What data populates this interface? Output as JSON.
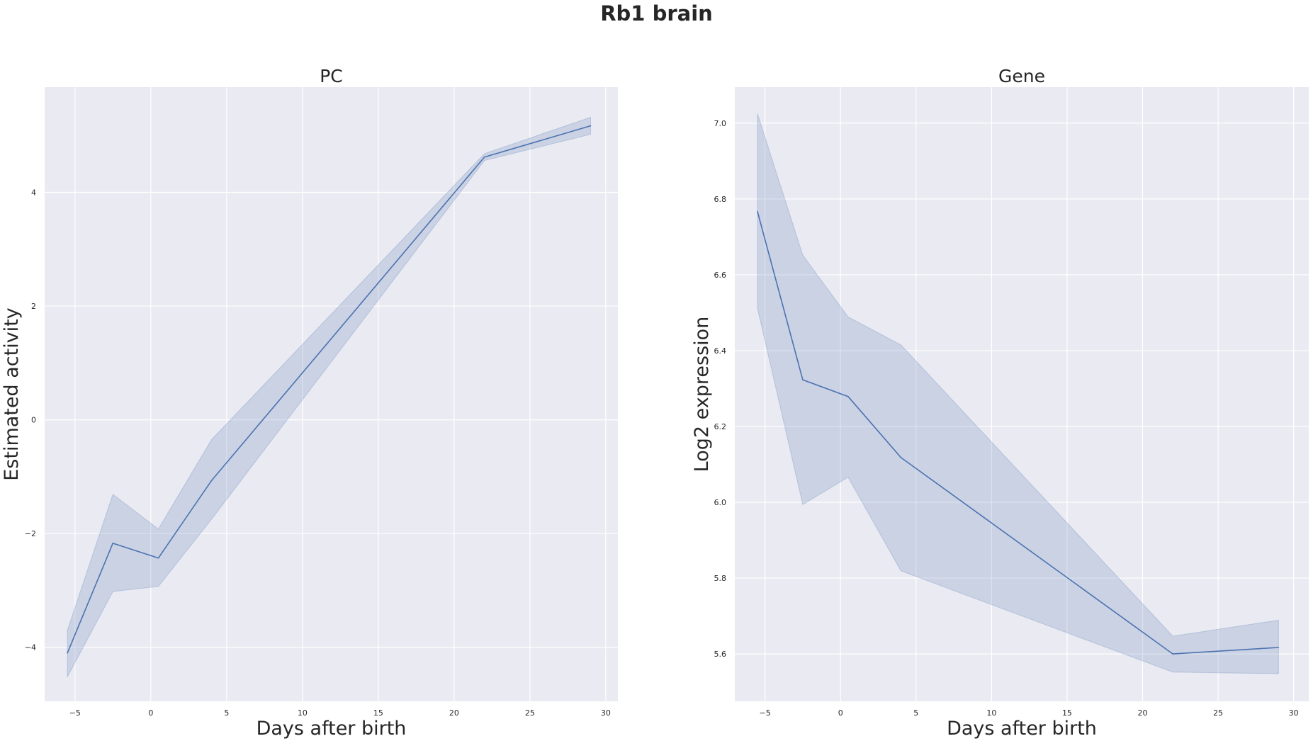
{
  "figure": {
    "title": "Rb1 brain"
  },
  "colors": {
    "plot_bg": "#EAEAF2",
    "grid": "#FFFFFF",
    "line": "#4C72B0",
    "band": "#4C72B0",
    "text": "#262626"
  },
  "chart_data": [
    {
      "type": "line",
      "title": "PC",
      "xlabel": "Days after birth",
      "ylabel": "Estimated activity",
      "xlim": [
        -7,
        30.8
      ],
      "ylim": [
        -4.95,
        5.85
      ],
      "xticks": [
        -5,
        0,
        5,
        10,
        15,
        20,
        25,
        30
      ],
      "xtick_labels": [
        "−5",
        "0",
        "5",
        "10",
        "15",
        "20",
        "25",
        "30"
      ],
      "yticks": [
        -4,
        -2,
        0,
        2,
        4
      ],
      "ytick_labels": [
        "−4",
        "−2",
        "0",
        "2",
        "4"
      ],
      "grid": true,
      "series": [
        {
          "name": "PC",
          "x": [
            -5.5,
            -2.5,
            0.5,
            4,
            22,
            29
          ],
          "y": [
            -4.1,
            -2.17,
            -2.43,
            -1.07,
            4.62,
            5.17
          ],
          "ci_low": [
            -4.52,
            -3.02,
            -2.93,
            -1.75,
            4.56,
            5.02
          ],
          "ci_high": [
            -3.7,
            -1.31,
            -1.92,
            -0.35,
            4.68,
            5.32
          ]
        }
      ]
    },
    {
      "type": "line",
      "title": "Gene",
      "xlabel": "Days after birth",
      "ylabel": "Log2 expression",
      "xlim": [
        -7,
        31
      ],
      "ylim": [
        5.475,
        7.095
      ],
      "xticks": [
        -5,
        0,
        5,
        10,
        15,
        20,
        25,
        30
      ],
      "xtick_labels": [
        "−5",
        "0",
        "5",
        "10",
        "15",
        "20",
        "25",
        "30"
      ],
      "yticks": [
        5.6,
        5.8,
        6.0,
        6.2,
        6.4,
        6.6,
        6.8,
        7.0
      ],
      "ytick_labels": [
        "5.6",
        "5.8",
        "6.0",
        "6.2",
        "6.4",
        "6.6",
        "6.8",
        "7.0"
      ],
      "grid": true,
      "series": [
        {
          "name": "Gene",
          "x": [
            -5.5,
            -2.5,
            0.5,
            4,
            22,
            29
          ],
          "y": [
            6.767,
            6.323,
            6.279,
            6.118,
            5.6,
            5.617
          ],
          "ci_low": [
            6.512,
            5.994,
            6.066,
            5.819,
            5.552,
            5.548
          ],
          "ci_high": [
            7.025,
            6.652,
            6.489,
            6.415,
            5.647,
            5.689
          ]
        }
      ]
    }
  ]
}
